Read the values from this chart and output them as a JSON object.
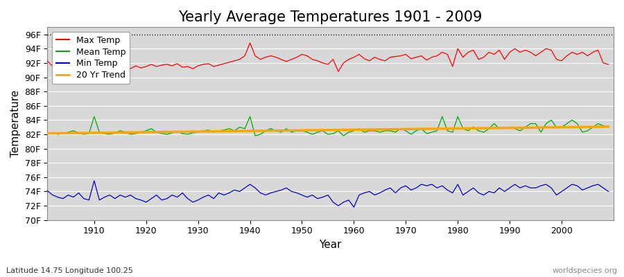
{
  "title": "Yearly Average Temperatures 1901 - 2009",
  "xlabel": "Year",
  "ylabel": "Temperature",
  "subtitle_lat": "Latitude 14.75 Longitude 100.25",
  "credit": "worldspecies.org",
  "years": [
    1901,
    1902,
    1903,
    1904,
    1905,
    1906,
    1907,
    1908,
    1909,
    1910,
    1911,
    1912,
    1913,
    1914,
    1915,
    1916,
    1917,
    1918,
    1919,
    1920,
    1921,
    1922,
    1923,
    1924,
    1925,
    1926,
    1927,
    1928,
    1929,
    1930,
    1931,
    1932,
    1933,
    1934,
    1935,
    1936,
    1937,
    1938,
    1939,
    1940,
    1941,
    1942,
    1943,
    1944,
    1945,
    1946,
    1947,
    1948,
    1949,
    1950,
    1951,
    1952,
    1953,
    1954,
    1955,
    1956,
    1957,
    1958,
    1959,
    1960,
    1961,
    1962,
    1963,
    1964,
    1965,
    1966,
    1967,
    1968,
    1969,
    1970,
    1971,
    1972,
    1973,
    1974,
    1975,
    1976,
    1977,
    1978,
    1979,
    1980,
    1981,
    1982,
    1983,
    1984,
    1985,
    1986,
    1987,
    1988,
    1989,
    1990,
    1991,
    1992,
    1993,
    1994,
    1995,
    1996,
    1997,
    1998,
    1999,
    2000,
    2001,
    2002,
    2003,
    2004,
    2005,
    2006,
    2007,
    2008,
    2009
  ],
  "max_temp": [
    92.3,
    91.5,
    91.4,
    91.5,
    91.7,
    91.9,
    91.2,
    91.3,
    91.1,
    91.2,
    91.8,
    91.6,
    91.4,
    91.5,
    91.8,
    91.9,
    91.2,
    91.6,
    91.3,
    91.5,
    91.8,
    91.5,
    91.7,
    91.8,
    91.6,
    91.9,
    91.4,
    91.5,
    91.2,
    91.6,
    91.8,
    91.9,
    91.5,
    91.7,
    91.9,
    92.1,
    92.3,
    92.5,
    93.0,
    94.8,
    93.0,
    92.5,
    92.8,
    93.0,
    92.8,
    92.5,
    92.2,
    92.5,
    92.8,
    93.2,
    93.0,
    92.5,
    92.3,
    92.0,
    91.8,
    92.5,
    90.8,
    92.0,
    92.5,
    92.8,
    93.2,
    92.6,
    92.3,
    92.8,
    92.5,
    92.3,
    92.8,
    92.9,
    93.0,
    93.2,
    92.6,
    92.8,
    93.0,
    92.4,
    92.8,
    93.0,
    93.5,
    93.2,
    91.5,
    94.0,
    92.8,
    93.5,
    93.8,
    92.5,
    92.8,
    93.5,
    93.2,
    93.8,
    92.5,
    93.5,
    94.0,
    93.5,
    93.8,
    93.5,
    93.0,
    93.5,
    94.0,
    93.8,
    92.5,
    92.3,
    93.0,
    93.5,
    93.2,
    93.5,
    93.0,
    93.5,
    93.8,
    92.0,
    91.8
  ],
  "mean_temp": [
    82.0,
    82.2,
    82.0,
    82.1,
    82.3,
    82.5,
    82.2,
    82.0,
    82.1,
    84.5,
    82.3,
    82.1,
    82.0,
    82.2,
    82.5,
    82.3,
    82.0,
    82.1,
    82.3,
    82.5,
    82.8,
    82.3,
    82.1,
    82.0,
    82.2,
    82.4,
    82.1,
    82.0,
    82.2,
    82.3,
    82.5,
    82.6,
    82.3,
    82.5,
    82.6,
    82.8,
    82.5,
    83.0,
    82.8,
    84.5,
    81.8,
    82.0,
    82.5,
    82.8,
    82.5,
    82.3,
    82.8,
    82.3,
    82.5,
    82.5,
    82.3,
    82.0,
    82.3,
    82.5,
    82.0,
    82.1,
    82.5,
    81.8,
    82.3,
    82.5,
    82.8,
    82.3,
    82.5,
    82.5,
    82.3,
    82.5,
    82.5,
    82.3,
    82.8,
    82.5,
    82.0,
    82.5,
    82.8,
    82.1,
    82.3,
    82.5,
    84.5,
    82.5,
    82.3,
    84.5,
    82.8,
    82.5,
    83.0,
    82.5,
    82.3,
    82.8,
    83.5,
    82.8,
    83.0,
    83.0,
    82.8,
    82.5,
    83.0,
    83.5,
    83.5,
    82.3,
    83.5,
    84.0,
    83.0,
    83.0,
    83.5,
    84.0,
    83.5,
    82.3,
    82.5,
    83.0,
    83.5,
    83.2,
    83.0
  ],
  "min_temp": [
    74.1,
    73.5,
    73.2,
    73.0,
    73.5,
    73.2,
    73.8,
    73.0,
    72.8,
    75.5,
    72.8,
    73.2,
    73.5,
    73.0,
    73.5,
    73.2,
    73.5,
    73.0,
    72.8,
    72.5,
    73.0,
    73.5,
    72.8,
    73.0,
    73.5,
    73.2,
    73.8,
    73.0,
    72.5,
    72.8,
    73.2,
    73.5,
    73.0,
    73.8,
    73.5,
    73.8,
    74.2,
    74.0,
    74.5,
    75.0,
    74.5,
    73.8,
    73.5,
    73.8,
    74.0,
    74.2,
    74.5,
    74.0,
    73.8,
    73.5,
    73.2,
    73.5,
    73.0,
    73.2,
    73.5,
    72.5,
    72.0,
    72.5,
    72.8,
    71.8,
    73.5,
    73.8,
    74.0,
    73.5,
    73.8,
    74.2,
    74.5,
    73.8,
    74.5,
    74.8,
    74.2,
    74.5,
    75.0,
    74.8,
    75.0,
    74.5,
    74.8,
    74.2,
    73.8,
    75.0,
    73.5,
    74.0,
    74.5,
    73.8,
    73.5,
    74.0,
    73.8,
    74.5,
    74.0,
    74.5,
    75.0,
    74.5,
    74.8,
    74.5,
    74.5,
    74.8,
    75.0,
    74.5,
    73.5,
    74.0,
    74.5,
    75.0,
    74.8,
    74.2,
    74.5,
    74.8,
    75.0,
    74.5,
    74.0
  ],
  "bg_color": "#ffffff",
  "plot_bg_color": "#d8d8d8",
  "max_color": "#ff0000",
  "mean_color": "#00aa00",
  "min_color": "#0000cc",
  "trend_color": "#ffa500",
  "grid_color": "#ffffff",
  "dotted_line_val": 96,
  "ylim_min": 70,
  "ylim_max": 97,
  "yticks": [
    70,
    72,
    74,
    76,
    78,
    80,
    82,
    84,
    86,
    88,
    90,
    92,
    94,
    96
  ],
  "ytick_labels": [
    "70F",
    "72F",
    "74F",
    "76F",
    "78F",
    "80F",
    "82F",
    "84F",
    "86F",
    "88F",
    "90F",
    "92F",
    "94F",
    "96F"
  ],
  "xticks": [
    1910,
    1920,
    1930,
    1940,
    1950,
    1960,
    1970,
    1980,
    1990,
    2000
  ],
  "title_fontsize": 15,
  "axis_label_fontsize": 11,
  "tick_fontsize": 9,
  "legend_fontsize": 9
}
